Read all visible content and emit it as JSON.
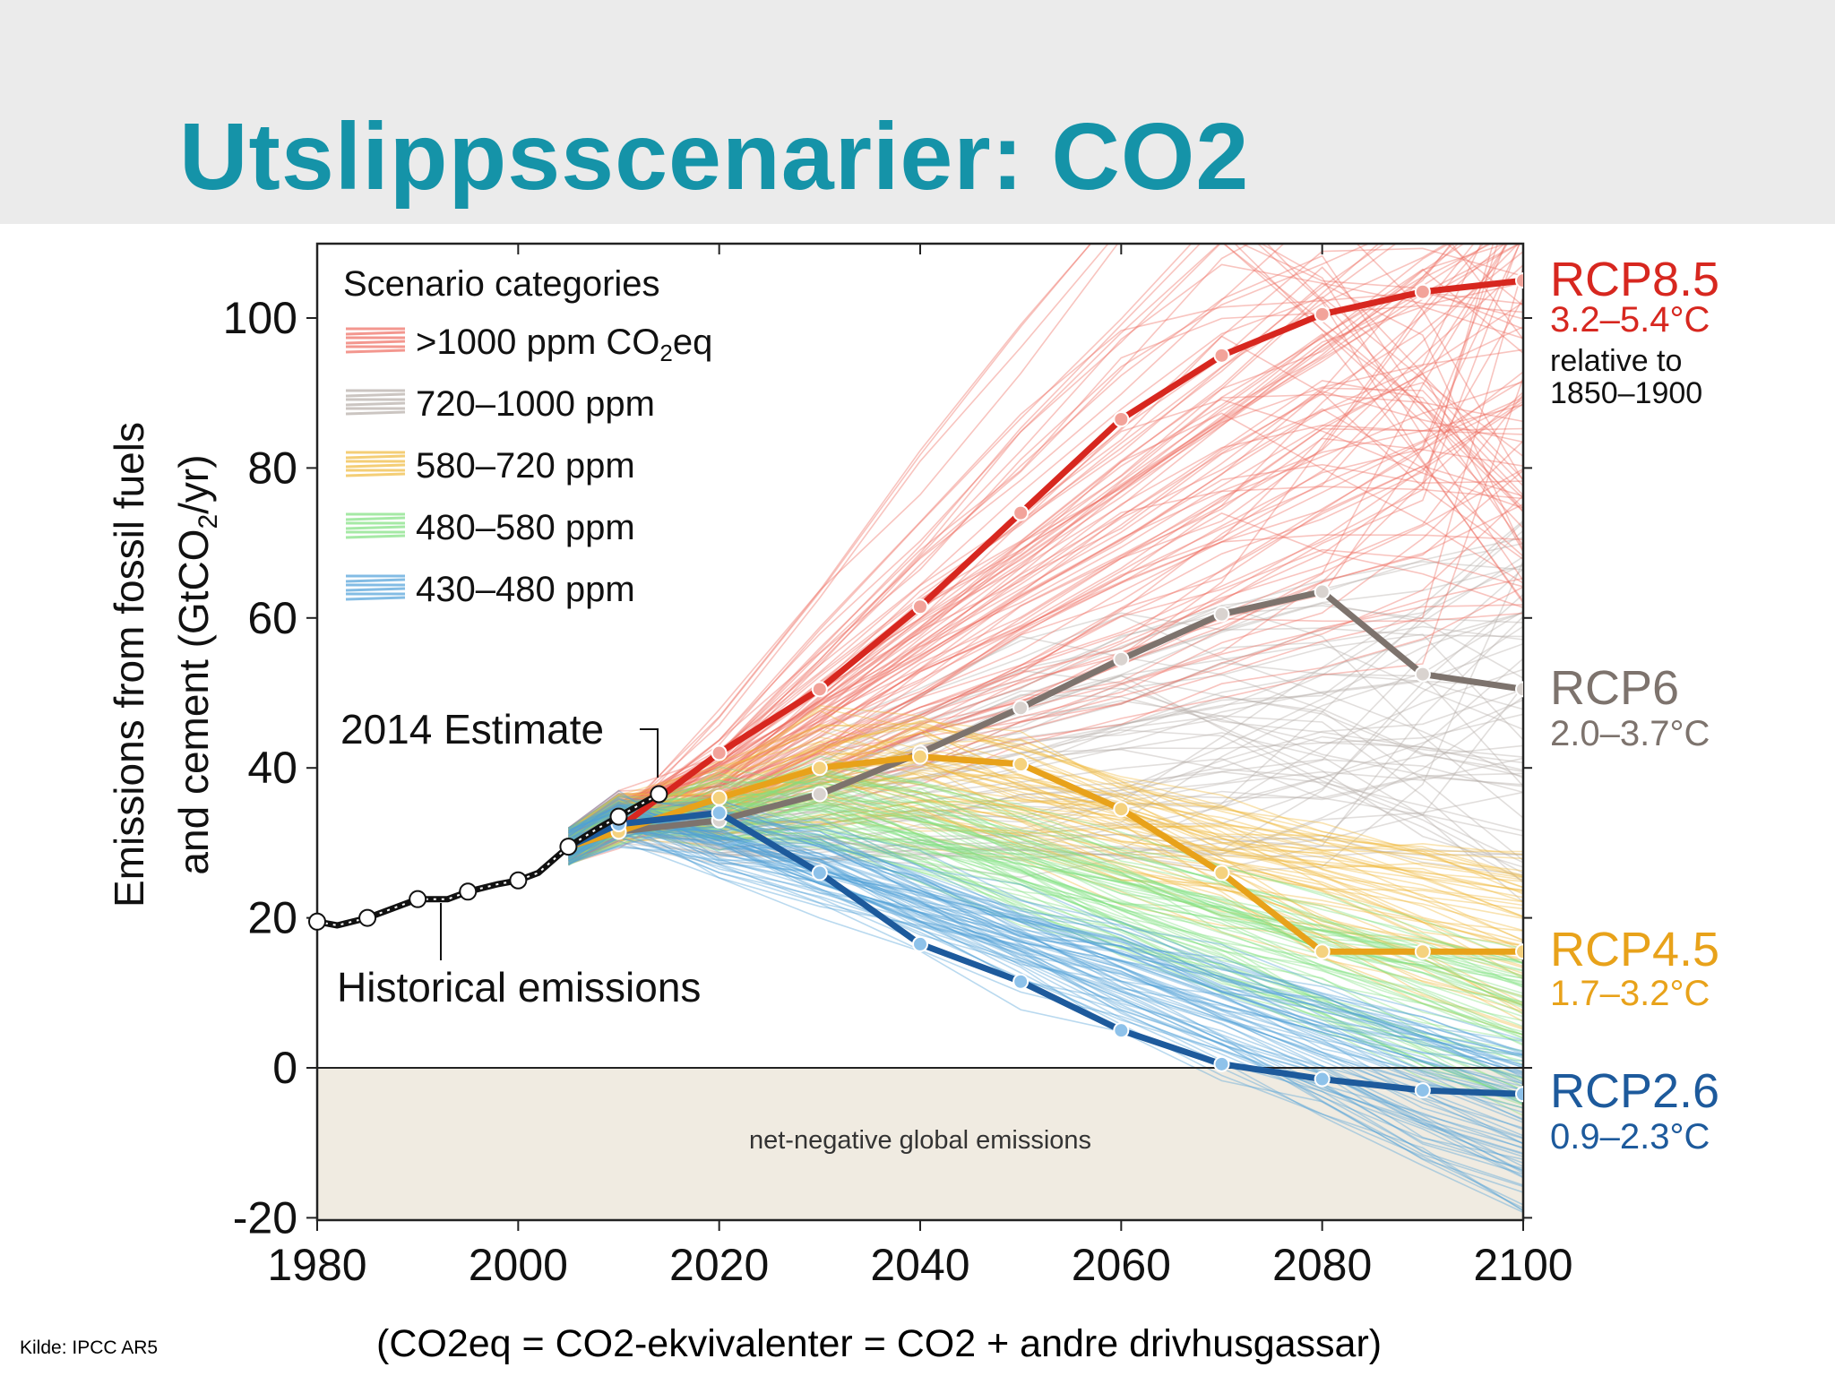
{
  "slide": {
    "title": "Utslippsscenarier: CO2",
    "source_note": "Kilde: IPCC AR5",
    "footnote": "(CO2eq = CO2-ekvivalenter = CO2 + andre drivhusgassar)"
  },
  "colors": {
    "title": "#1593a8",
    "header_band": "#ebebeb",
    "negative_band": "#f0ebe1",
    "rcp85": "#d7271f",
    "rcp6": "#7d736d",
    "rcp45": "#e8a21a",
    "rcp26": "#1d5a9c",
    "cat_gt1000": "#ee6b5f",
    "cat_720_1000": "#b5ada7",
    "cat_580_720": "#f0b93c",
    "cat_480_580": "#7fe07f",
    "cat_430_480": "#4f9fd8"
  },
  "chart_data": {
    "type": "line",
    "xlabel": "",
    "ylabel": "Emissions from fossil fuels and cement (GtCO2/yr)",
    "ylabel_line1": "Emissions from fossil fuels",
    "ylabel_line2": "and cement (GtCO",
    "ylabel_sub": "2",
    "ylabel_end": "/yr)",
    "xlim": [
      1980,
      2100
    ],
    "ylim": [
      -20,
      110
    ],
    "xticks": [
      1980,
      2000,
      2020,
      2040,
      2060,
      2080,
      2100
    ],
    "yticks": [
      -20,
      0,
      20,
      40,
      60,
      80,
      100
    ],
    "xtick_labels": [
      "1980",
      "2000",
      "2020",
      "2040",
      "2060",
      "2080",
      "2100"
    ],
    "ytick_labels": [
      "-20",
      "0",
      "20",
      "40",
      "60",
      "80",
      "100"
    ],
    "grid": false,
    "legend": {
      "title": "Scenario categories",
      "placement": "top-left",
      "entries": [
        {
          "label": ">1000 ppm CO",
          "sub": "2",
          "tail": "eq",
          "color_key": "cat_gt1000"
        },
        {
          "label": "720–1000 ppm",
          "sub": "",
          "tail": "",
          "color_key": "cat_720_1000"
        },
        {
          "label": "580–720 ppm",
          "sub": "",
          "tail": "",
          "color_key": "cat_580_720"
        },
        {
          "label": "480–580 ppm",
          "sub": "",
          "tail": "",
          "color_key": "cat_480_580"
        },
        {
          "label": "430–480 ppm",
          "sub": "",
          "tail": "",
          "color_key": "cat_430_480"
        }
      ]
    },
    "annotations": {
      "estimate_2014": "2014 Estimate",
      "historical": "Historical emissions",
      "negative_region": "net-negative global emissions",
      "relative_line1": "relative to",
      "relative_line2": "1850–1900"
    },
    "historical": {
      "x": [
        1980,
        1982,
        1985,
        1990,
        1993,
        1995,
        1998,
        2000,
        2002,
        2005,
        2008,
        2010,
        2012,
        2014
      ],
      "y": [
        19.5,
        19,
        20,
        22.5,
        22.5,
        23.5,
        24.5,
        25,
        26,
        29.5,
        32,
        33.5,
        35,
        36.5
      ]
    },
    "series": [
      {
        "name": "RCP8.5",
        "range": "3.2–5.4°C",
        "color_key": "rcp85",
        "x": [
          2005,
          2010,
          2020,
          2030,
          2040,
          2050,
          2060,
          2070,
          2080,
          2090,
          2100
        ],
        "y": [
          29.5,
          32,
          42,
          50.5,
          61.5,
          74,
          86.5,
          95,
          100.5,
          103.5,
          105
        ]
      },
      {
        "name": "RCP6",
        "range": "2.0–3.7°C",
        "color_key": "rcp6",
        "x": [
          2005,
          2010,
          2020,
          2030,
          2040,
          2050,
          2060,
          2070,
          2080,
          2090,
          2100
        ],
        "y": [
          29.5,
          31.5,
          33,
          36.5,
          42,
          48,
          54.5,
          60.5,
          63.5,
          52.5,
          50.5
        ]
      },
      {
        "name": "RCP4.5",
        "range": "1.7–3.2°C",
        "color_key": "rcp45",
        "x": [
          2005,
          2010,
          2020,
          2030,
          2040,
          2050,
          2060,
          2070,
          2080,
          2090,
          2100
        ],
        "y": [
          29.5,
          31.5,
          36,
          40,
          41.5,
          40.5,
          34.5,
          26,
          15.5,
          15.5,
          15.5
        ]
      },
      {
        "name": "RCP2.6",
        "range": "0.9–2.3°C",
        "color_key": "rcp26",
        "x": [
          2005,
          2010,
          2020,
          2030,
          2040,
          2050,
          2060,
          2070,
          2080,
          2090,
          2100
        ],
        "y": [
          29.5,
          32.5,
          34,
          26,
          16.5,
          11.5,
          5,
          0.5,
          -1.5,
          -3,
          -3.5
        ]
      }
    ]
  }
}
